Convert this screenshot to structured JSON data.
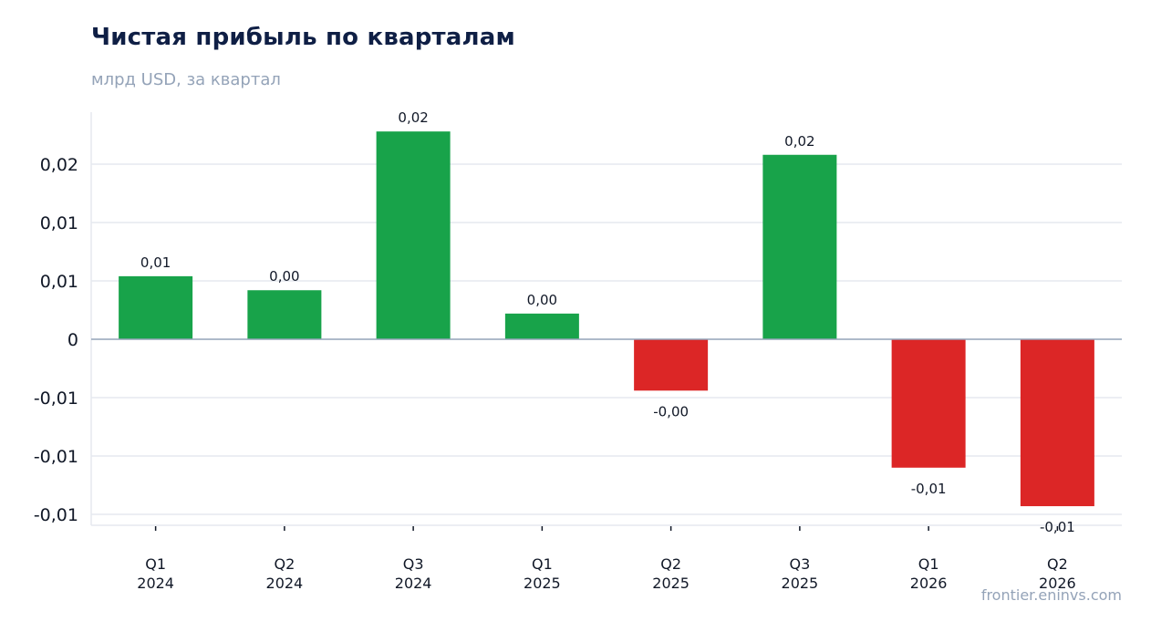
{
  "chart_data": {
    "type": "bar",
    "title": "Чистая прибыль по кварталам",
    "subtitle": "млрд USD, за квартал",
    "source": "frontier.eninvs.com",
    "categories": [
      [
        "Q1",
        "2024"
      ],
      [
        "Q2",
        "2024"
      ],
      [
        "Q3",
        "2024"
      ],
      [
        "Q1",
        "2025"
      ],
      [
        "Q2",
        "2025"
      ],
      [
        "Q3",
        "2025"
      ],
      [
        "Q1",
        "2026"
      ],
      [
        "Q2",
        "2026"
      ]
    ],
    "values": [
      0.0054,
      0.0042,
      0.0178,
      0.0022,
      -0.0044,
      0.0158,
      -0.011,
      -0.0143
    ],
    "data_labels": [
      "0,01",
      "0,00",
      "0,02",
      "0,00",
      "-0,00",
      "0,02",
      "-0,01",
      "-0,01"
    ],
    "yticks": [
      {
        "value": 0.015,
        "label": "0,02"
      },
      {
        "value": 0.01,
        "label": "0,01"
      },
      {
        "value": 0.005,
        "label": "0,01"
      },
      {
        "value": 0,
        "label": "0"
      },
      {
        "value": -0.005,
        "label": "-0,01"
      },
      {
        "value": -0.01,
        "label": "-0,01"
      },
      {
        "value": -0.015,
        "label": "-0,01"
      }
    ],
    "ylim": [
      -0.0158,
      0.0194
    ],
    "grid": true,
    "colors": {
      "positive": "#18a34a",
      "negative": "#dc2626",
      "grid": "#e5e9ef",
      "zero_line": "#94a3b8"
    }
  }
}
